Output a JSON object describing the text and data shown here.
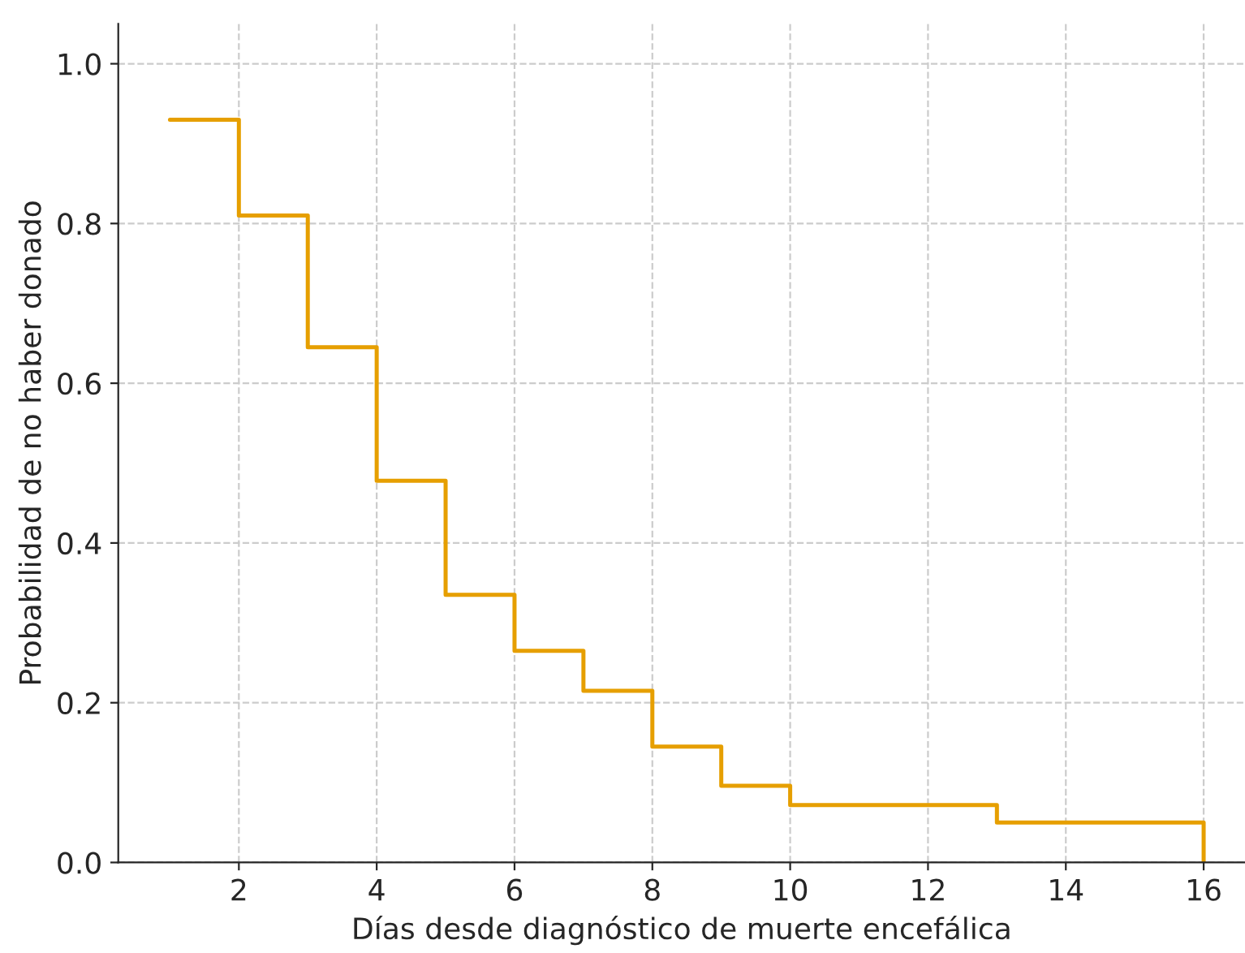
{
  "chart_data": {
    "type": "step",
    "xlabel": "Días desde diagnóstico de muerte encefálica",
    "ylabel": "Probabilidad de no haber donado",
    "x": [
      1,
      2,
      3,
      4,
      5,
      6,
      7,
      8,
      9,
      10,
      13,
      16
    ],
    "series": [
      {
        "color": "#e69f00",
        "values": [
          0.93,
          0.81,
          0.645,
          0.478,
          0.335,
          0.265,
          0.215,
          0.145,
          0.096,
          0.072,
          0.05,
          0.0
        ]
      }
    ],
    "xlim": [
      0.25,
      16.6
    ],
    "ylim": [
      0,
      1.05
    ],
    "xticks": [
      2,
      4,
      6,
      8,
      10,
      12,
      14,
      16
    ],
    "yticks": [
      {
        "value": 0,
        "label": "0.0"
      },
      {
        "value": 0.2,
        "label": "0.2"
      },
      {
        "value": 0.4,
        "label": "0.4"
      },
      {
        "value": 0.6,
        "label": "0.6"
      },
      {
        "value": 0.8,
        "label": "0.8"
      },
      {
        "value": 1,
        "label": "1.0"
      }
    ],
    "grid": true,
    "line_style": "solid",
    "marker": "none"
  }
}
